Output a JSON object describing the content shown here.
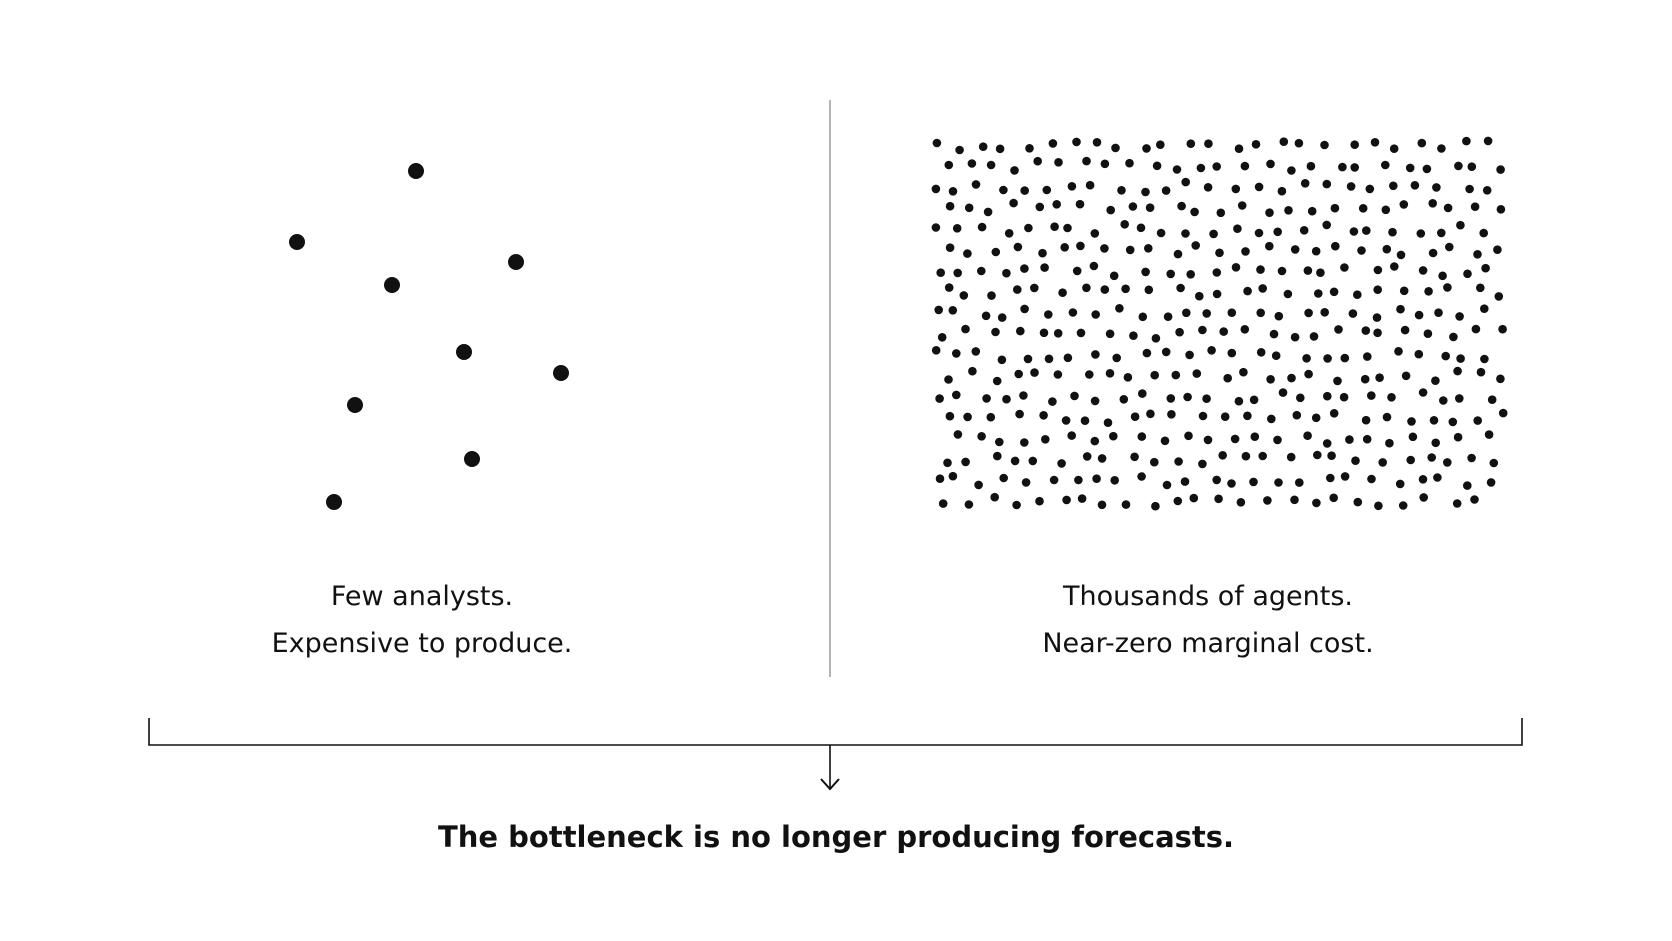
{
  "left_panel": {
    "line1": "Few analysts.",
    "line2": "Expensive to produce."
  },
  "right_panel": {
    "line1": "Thousands of agents.",
    "line2": "Near-zero marginal cost."
  },
  "conclusion": "The bottleneck is no longer producing forecasts.",
  "colors": {
    "ink": "#111111",
    "divider": "#9a9a9a",
    "background": "#ffffff"
  }
}
